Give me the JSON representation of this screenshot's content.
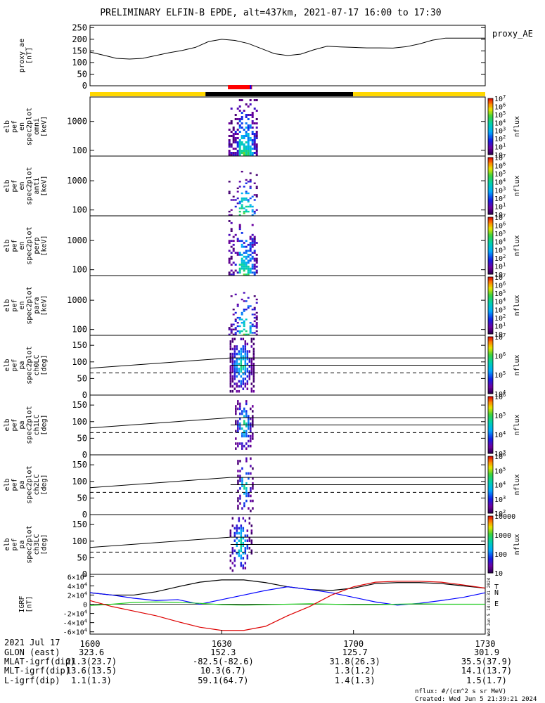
{
  "title": "PRELIMINARY ELFIN-B EPDE, alt=437km, 2021-07-17 16:00 to 17:30",
  "footer": {
    "units": "nflux: #/(cm^2 s sr MeV)",
    "created": "Created: Wed Jun  5 21:39:21 2024",
    "rotated_stamp": "Wed Jun  5 14:38:31 2024"
  },
  "time_axis": {
    "start_minute": 0,
    "end_minute": 90,
    "tick_minutes": [
      0,
      30,
      60,
      90
    ],
    "tick_labels": [
      "1600",
      "1630",
      "1700",
      "1730"
    ]
  },
  "ephemeris": {
    "row_labels": [
      "2021 Jul 17",
      "GLON (east)",
      "MLAT-igrf(dip)",
      "MLT-igrf(dip)",
      "L-igrf(dip)"
    ],
    "row_values": [
      [
        "1600",
        "1630",
        "1700",
        "1730"
      ],
      [
        "323.6",
        "152.3",
        "125.7",
        "301.9"
      ],
      [
        "21.3(23.7)",
        "-82.5(-82.6)",
        "31.8(26.3)",
        "35.5(37.9)"
      ],
      [
        "13.6(13.5)",
        "10.3(6.7)",
        "1.3(1.2)",
        "14.1(13.7)"
      ],
      [
        "1.1(1.3)",
        "59.1(64.7)",
        "1.4(1.3)",
        "1.5(1.7)"
      ]
    ]
  },
  "chart_data": [
    {
      "panel": "proxy_ae",
      "type": "line",
      "ylabel": [
        "proxy_ae",
        "[nT]"
      ],
      "legend": "proxy_AE",
      "ylim": [
        0,
        260
      ],
      "yticks": [
        0,
        50,
        100,
        150,
        200,
        250
      ],
      "x_minutes": [
        0,
        3,
        6,
        9,
        12,
        15,
        18,
        21,
        24,
        27,
        30,
        33,
        36,
        39,
        42,
        45,
        48,
        51,
        54,
        57,
        60,
        63,
        66,
        69,
        72,
        75,
        78,
        81,
        84,
        87,
        90
      ],
      "values": [
        145,
        132,
        118,
        115,
        118,
        130,
        142,
        152,
        165,
        190,
        200,
        195,
        182,
        160,
        138,
        130,
        136,
        155,
        170,
        167,
        165,
        163,
        163,
        162,
        168,
        180,
        196,
        205,
        205,
        205,
        205
      ],
      "color": "#000000"
    },
    {
      "panel": "orbit-bar",
      "type": "bar",
      "segments": [
        {
          "start": 0,
          "end": 26.3,
          "color": "#ffd700"
        },
        {
          "start": 26.3,
          "end": 59.9,
          "color": "#000000"
        },
        {
          "start": 59.9,
          "end": 90,
          "color": "#ffd700"
        }
      ],
      "science_zone": {
        "start": 31.4,
        "end": 36.9,
        "color": "#ff0000",
        "accent": "#0000ff"
      }
    },
    {
      "panel": "omni",
      "type": "heatmap",
      "ylabel": [
        "elb",
        "pef",
        "en",
        "spec2plot",
        "omni",
        "[keV]"
      ],
      "yscale": "log",
      "ylim": [
        63,
        7000
      ],
      "yticks": [
        100,
        1000
      ],
      "ytick_labels": [
        "100",
        "1000"
      ],
      "zlabel": "nflux",
      "zlim": [
        10,
        10000000
      ],
      "ztick_labels": [
        "10",
        "10^1",
        "10^2",
        "10^3",
        "10^4",
        "10^5",
        "10^6",
        "10^7"
      ],
      "x_range": [
        31.5,
        37.8
      ],
      "density": 0.9,
      "top_energy": 7000
    },
    {
      "panel": "anti",
      "type": "heatmap",
      "ylabel": [
        "elb",
        "pef",
        "en",
        "spec2plot",
        "anti",
        "[keV]"
      ],
      "yscale": "log",
      "ylim": [
        63,
        7000
      ],
      "yticks": [
        100,
        1000
      ],
      "ytick_labels": [
        "100",
        "1000"
      ],
      "zlabel": "nflux",
      "zlim": [
        10,
        10000000
      ],
      "ztick_labels": [
        "10",
        "10^1",
        "10^2",
        "10^3",
        "10^4",
        "10^5",
        "10^6",
        "10^7"
      ],
      "x_range": [
        31.5,
        37.8
      ],
      "density": 0.45,
      "top_energy": 2500
    },
    {
      "panel": "perp",
      "type": "heatmap",
      "ylabel": [
        "elb",
        "pef",
        "en",
        "spec2plot",
        "perp",
        "[keV]"
      ],
      "yscale": "log",
      "ylim": [
        63,
        7000
      ],
      "yticks": [
        100,
        1000
      ],
      "ytick_labels": [
        "100",
        "1000"
      ],
      "zlabel": "nflux",
      "zlim": [
        10,
        10000000
      ],
      "ztick_labels": [
        "10",
        "10^1",
        "10^2",
        "10^3",
        "10^4",
        "10^5",
        "10^6",
        "10^7"
      ],
      "x_range": [
        31.5,
        37.8
      ],
      "density": 0.75,
      "top_energy": 5000
    },
    {
      "panel": "para",
      "type": "heatmap",
      "ylabel": [
        "elb",
        "pef",
        "en",
        "spec2plot",
        "para",
        "[keV]"
      ],
      "yscale": "log",
      "ylim": [
        63,
        7000
      ],
      "yticks": [
        100,
        1000
      ],
      "ytick_labels": [
        "100",
        "1000"
      ],
      "zlabel": "nflux",
      "zlim": [
        10,
        10000000
      ],
      "ztick_labels": [
        "10",
        "10^1",
        "10^2",
        "10^3",
        "10^4",
        "10^5",
        "10^6",
        "10^7"
      ],
      "x_range": [
        31.5,
        37.8
      ],
      "density": 0.45,
      "top_energy": 2500
    },
    {
      "panel": "ch0LC",
      "type": "heatmap",
      "ylabel": [
        "elb",
        "pef",
        "pa",
        "spec2plot",
        "ch0LC",
        "[deg]"
      ],
      "ylim": [
        0,
        180
      ],
      "yticks": [
        0,
        50,
        100,
        150
      ],
      "zlabel": "nflux",
      "zlim": [
        1000,
        10000000
      ],
      "ztick_labels": [
        "10^4",
        "10^5",
        "10^6",
        "10^7"
      ],
      "x_range": [
        31.8,
        37.5
      ],
      "density": 0.85,
      "sloped_line": [
        [
          0,
          81
        ],
        [
          32,
          112
        ]
      ],
      "flat_lines": [
        [
          32,
          112
        ],
        [
          32,
          90
        ]
      ],
      "dashed_line": 67
    },
    {
      "panel": "ch1LC",
      "type": "heatmap",
      "ylabel": [
        "elb",
        "pef",
        "pa",
        "spec2plot",
        "ch1LC",
        "[deg]"
      ],
      "ylim": [
        0,
        180
      ],
      "yticks": [
        0,
        50,
        100,
        150
      ],
      "zlabel": "nflux",
      "zlim": [
        1000,
        1000000
      ],
      "ztick_labels": [
        "10^3",
        "10^4",
        "10^5",
        "10^6"
      ],
      "x_range": [
        33.0,
        37.2
      ],
      "density": 0.6,
      "sloped_line": [
        [
          0,
          81
        ],
        [
          32,
          112
        ]
      ],
      "flat_lines": [
        [
          32,
          112
        ],
        [
          32,
          90
        ]
      ],
      "dashed_line": 67
    },
    {
      "panel": "ch2LC",
      "type": "heatmap",
      "ylabel": [
        "elb",
        "pef",
        "pa",
        "spec2plot",
        "ch2LC",
        "[deg]"
      ],
      "ylim": [
        0,
        180
      ],
      "yticks": [
        0,
        50,
        100,
        150
      ],
      "zlabel": "nflux",
      "zlim": [
        100,
        1000000
      ],
      "ztick_labels": [
        "10^2",
        "10^3",
        "10^4",
        "10^5",
        "10^6"
      ],
      "x_range": [
        33.5,
        37.0
      ],
      "density": 0.45,
      "sloped_line": [
        [
          0,
          81
        ],
        [
          32,
          112
        ]
      ],
      "flat_lines": [
        [
          32,
          112
        ],
        [
          32,
          90
        ]
      ],
      "dashed_line": 67
    },
    {
      "panel": "ch3LC",
      "type": "heatmap",
      "ylabel": [
        "elb",
        "pef",
        "pa",
        "spec2plot",
        "ch3LC",
        "[deg]"
      ],
      "ylim": [
        0,
        180
      ],
      "yticks": [
        0,
        50,
        100,
        150
      ],
      "zlabel": "nflux",
      "zlim": [
        10,
        10000
      ],
      "ztick_labels": [
        "10",
        "100",
        "1000",
        "10000"
      ],
      "x_range": [
        31.8,
        37.0
      ],
      "density": 0.45,
      "sloped_line": [
        [
          0,
          81
        ],
        [
          32,
          112
        ]
      ],
      "flat_lines": [
        [
          32,
          112
        ],
        [
          32,
          90
        ]
      ],
      "dashed_line": 67
    },
    {
      "panel": "igrf",
      "type": "line",
      "ylabel": [
        "IGRF",
        "[nT]"
      ],
      "ylim": [
        -65000,
        65000
      ],
      "yticks": [
        -60000,
        -40000,
        -20000,
        0,
        20000,
        40000,
        60000
      ],
      "ytick_labels": [
        "-6×10^4",
        "-4×10^4",
        "-2×10^4",
        "0",
        "2×10^4",
        "4×10^4",
        "6×10^4"
      ],
      "x_minutes": [
        0,
        5,
        10,
        15,
        20,
        25,
        30,
        35,
        40,
        45,
        50,
        55,
        60,
        65,
        70,
        75,
        80,
        85,
        90
      ],
      "series": [
        {
          "name": "T",
          "color": "#000000",
          "values": [
            25000,
            20000,
            20000,
            27000,
            38000,
            48000,
            53000,
            53000,
            47000,
            38000,
            32000,
            30000,
            35000,
            45000,
            47000,
            47000,
            45000,
            40000,
            35000
          ]
        },
        {
          "name": "N",
          "color": "#0000ff",
          "values": [
            25000,
            20000,
            13000,
            8000,
            10000,
            0,
            10000,
            20000,
            30000,
            38000,
            32000,
            25000,
            15000,
            5000,
            -2000,
            2000,
            8000,
            15000,
            25000
          ]
        },
        {
          "name": "E",
          "color": "#22cc22",
          "values": [
            -3000,
            0,
            4000,
            5000,
            4000,
            2000,
            -1000,
            -2000,
            -1000,
            0,
            1000,
            0,
            -1000,
            -1000,
            0,
            1000,
            0,
            0,
            0
          ]
        },
        {
          "name": "",
          "color": "#dd0000",
          "values": [
            8000,
            -5000,
            -15000,
            -25000,
            -38000,
            -50000,
            -57000,
            -57000,
            -48000,
            -25000,
            -5000,
            20000,
            38000,
            48000,
            50000,
            50000,
            48000,
            42000,
            35000
          ]
        }
      ]
    }
  ]
}
